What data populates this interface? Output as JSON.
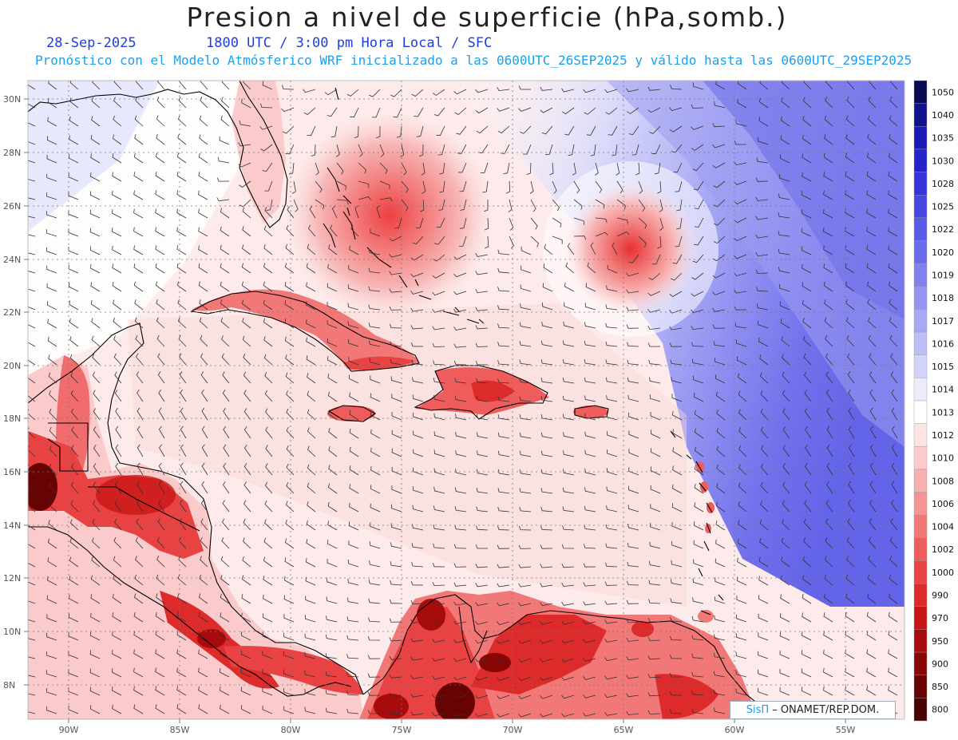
{
  "header": {
    "title": "Presion a nivel de superficie (hPa,somb.)",
    "date": "28-Sep-2025",
    "valid_time": "1800 UTC / 3:00 pm Hora Local / SFC",
    "model_info": "Pronóstico con el Modelo Atmósferico WRF inicializado a las 0600UTC_26SEP2025 y válido hasta las  0600UTC_29SEP2025"
  },
  "map": {
    "lat_labels": [
      "30N",
      "28N",
      "26N",
      "24N",
      "22N",
      "20N",
      "18N",
      "16N",
      "14N",
      "12N",
      "10N",
      "8N"
    ],
    "lon_labels": [
      "90W",
      "85W",
      "80W",
      "75W",
      "70W",
      "65W",
      "60W",
      "55W"
    ],
    "lows": [
      {
        "name": "low-bahamas",
        "lon": -76.2,
        "lat": 25.8,
        "pressure_hint": 1004
      },
      {
        "name": "low-atlantic",
        "lon": -64.7,
        "lat": 24.3,
        "pressure_hint": 1002
      }
    ]
  },
  "colorbar": {
    "levels": [
      "1050",
      "1040",
      "1035",
      "1030",
      "1028",
      "1025",
      "1022",
      "1020",
      "1019",
      "1018",
      "1017",
      "1016",
      "1015",
      "1014",
      "1013",
      "1012",
      "1010",
      "1008",
      "1006",
      "1004",
      "1002",
      "1000",
      "990",
      "970",
      "950",
      "900",
      "850",
      "800"
    ],
    "colors": [
      "#0b0b55",
      "#12128f",
      "#1a1ab8",
      "#2424cc",
      "#3434d8",
      "#4646e0",
      "#5a5ae6",
      "#6c6cea",
      "#8080ee",
      "#9494f2",
      "#a8a8f5",
      "#bdbdf7",
      "#d4d4fa",
      "#ececfd",
      "#ffffff",
      "#fde4e4",
      "#fbcaca",
      "#f8afaf",
      "#f59494",
      "#f27878",
      "#ee5c5c",
      "#e84242",
      "#dd2b2b",
      "#c81616",
      "#a80b0b",
      "#880606",
      "#680303",
      "#480101"
    ]
  },
  "credit": {
    "brand": "SisΠ",
    "org": "– ONAMET/REP.DOM."
  }
}
